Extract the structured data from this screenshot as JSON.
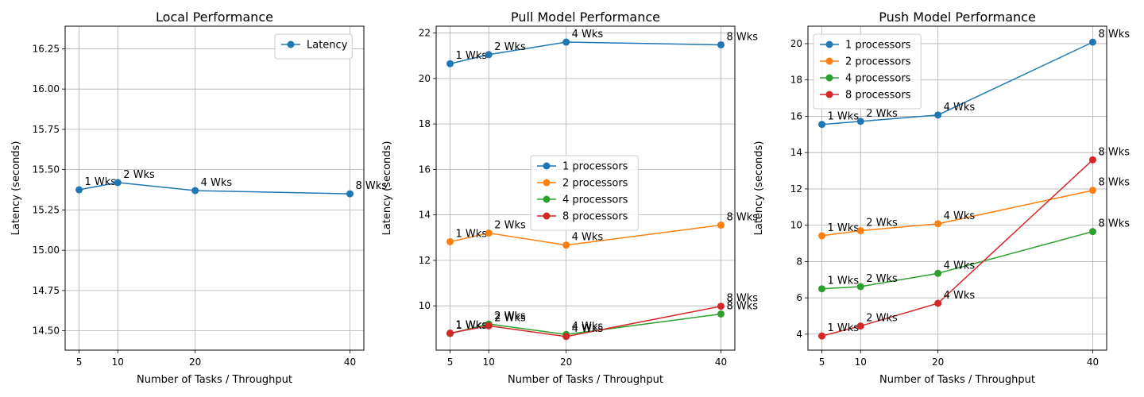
{
  "chart_data": [
    {
      "type": "line",
      "title": "Local Performance",
      "xlabel": "Number of Tasks / Throughput",
      "ylabel": "Latency (seconds)",
      "x": [
        5,
        10,
        20,
        40
      ],
      "xticks": [
        5,
        10,
        20,
        40
      ],
      "xlim": [
        3.2,
        41.8
      ],
      "ylim": [
        14.38,
        16.39
      ],
      "yticks": [
        14.5,
        14.75,
        15.0,
        15.25,
        15.5,
        15.75,
        16.0,
        16.25
      ],
      "ytick_labels": [
        "14.50",
        "14.75",
        "15.00",
        "15.25",
        "15.50",
        "15.75",
        "16.00",
        "16.25"
      ],
      "grid": true,
      "legend": "upper-right",
      "point_labels": [
        "1 Wks",
        "2 Wks",
        "4 Wks",
        "8 Wks"
      ],
      "series": [
        {
          "name": "Latency",
          "color": "#1f77b4",
          "values": [
            15.375,
            15.42,
            15.37,
            15.35
          ]
        }
      ]
    },
    {
      "type": "line",
      "title": "Pull Model Performance",
      "xlabel": "Number of Tasks / Throughput",
      "ylabel": "Latency (seconds)",
      "x": [
        5,
        10,
        20,
        40
      ],
      "xticks": [
        5,
        10,
        20,
        40
      ],
      "xlim": [
        3.2,
        41.8
      ],
      "ylim": [
        8.05,
        22.3
      ],
      "yticks": [
        10,
        12,
        14,
        16,
        18,
        20,
        22
      ],
      "ytick_labels": [
        "10",
        "12",
        "14",
        "16",
        "18",
        "20",
        "22"
      ],
      "grid": true,
      "legend": "center",
      "point_labels": [
        "1 Wks",
        "2 Wks",
        "4 Wks",
        "8 Wks"
      ],
      "series": [
        {
          "name": "1 processors",
          "color": "#1f77b4",
          "values": [
            20.65,
            21.05,
            21.6,
            21.48
          ]
        },
        {
          "name": "2 processors",
          "color": "#ff7f0e",
          "values": [
            12.82,
            13.2,
            12.67,
            13.55
          ]
        },
        {
          "name": "4 processors",
          "color": "#2ca02c",
          "values": [
            8.78,
            9.2,
            8.74,
            9.64
          ]
        },
        {
          "name": "8 processors",
          "color": "#d62728",
          "values": [
            8.8,
            9.12,
            8.65,
            9.98
          ]
        }
      ]
    },
    {
      "type": "line",
      "title": "Push Model Performance",
      "xlabel": "Number of Tasks / Throughput",
      "ylabel": "Latency (seconds)",
      "x": [
        5,
        10,
        20,
        40
      ],
      "xticks": [
        5,
        10,
        20,
        40
      ],
      "xlim": [
        3.2,
        41.8
      ],
      "ylim": [
        3.12,
        20.96
      ],
      "yticks": [
        4,
        6,
        8,
        10,
        12,
        14,
        16,
        18,
        20
      ],
      "ytick_labels": [
        "4",
        "6",
        "8",
        "10",
        "12",
        "14",
        "16",
        "18",
        "20"
      ],
      "grid": true,
      "legend": "upper-left",
      "point_labels": [
        "1 Wks",
        "2 Wks",
        "4 Wks",
        "8 Wks"
      ],
      "series": [
        {
          "name": "1 processors",
          "color": "#1f77b4",
          "values": [
            15.55,
            15.72,
            16.07,
            20.08
          ]
        },
        {
          "name": "2 processors",
          "color": "#ff7f0e",
          "values": [
            9.42,
            9.7,
            10.08,
            11.92
          ]
        },
        {
          "name": "4 processors",
          "color": "#2ca02c",
          "values": [
            6.5,
            6.62,
            7.35,
            9.65
          ]
        },
        {
          "name": "8 processors",
          "color": "#d62728",
          "values": [
            3.9,
            4.45,
            5.7,
            13.6
          ]
        }
      ]
    }
  ]
}
